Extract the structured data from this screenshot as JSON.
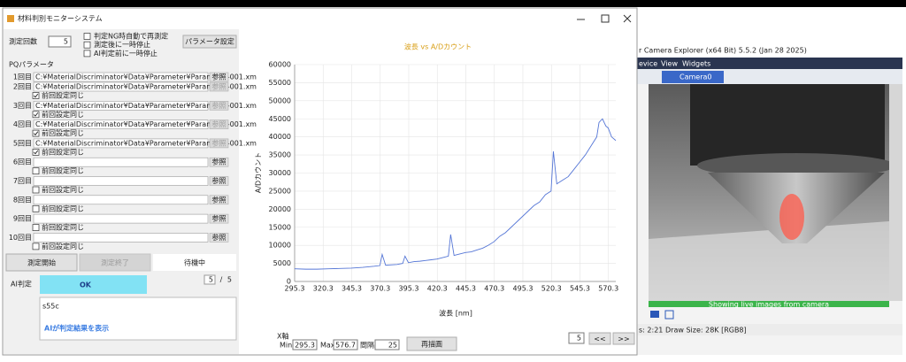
{
  "window": {
    "title": "材料判別モニターシステム"
  },
  "settings": {
    "count_label": "測定回数",
    "count": "5",
    "options": [
      "判定NG時自動で再測定",
      "測定後に一時停止",
      "AI判定前に一時停止"
    ],
    "param_button": "パラメータ設定",
    "pq_label": "PQパラメータ"
  },
  "rows": [
    {
      "label": "1回目",
      "path": "C:¥MaterialDiscriminator¥Data¥Parameter¥Parameter-001.xm",
      "button": "参照"
    },
    {
      "label": "2回目",
      "path": "C:¥MaterialDiscriminator¥Data¥Parameter¥Parameter-001.xm",
      "button": "参照",
      "checkbox": "前回設定同じ",
      "checked": true
    },
    {
      "label": "3回目",
      "path": "C:¥MaterialDiscriminator¥Data¥Parameter¥Parameter-001.xm",
      "button": "参照",
      "checkbox": "前回設定同じ",
      "checked": true
    },
    {
      "label": "4回目",
      "path": "C:¥MaterialDiscriminator¥Data¥Parameter¥Parameter-001.xm",
      "button": "参照",
      "checkbox": "前回設定同じ",
      "checked": true
    },
    {
      "label": "5回目",
      "path": "C:¥MaterialDiscriminator¥Data¥Parameter¥Parameter-001.xm",
      "button": "参照",
      "checkbox": "前回設定同じ",
      "checked": true
    },
    {
      "label": "6回目",
      "button": "参照",
      "checkbox": "前回設定同じ",
      "checked": false
    },
    {
      "label": "7回目",
      "button": "参照",
      "checkbox": "前回設定同じ",
      "checked": false
    },
    {
      "label": "8回目",
      "button": "参照",
      "checkbox": "前回設定同じ",
      "checked": false
    },
    {
      "label": "9回目",
      "button": "参照",
      "checkbox": "前回設定同じ",
      "checked": false
    },
    {
      "label": "10回目",
      "button": "参照",
      "checkbox": "前回設定同じ",
      "checked": false
    }
  ],
  "actions": {
    "start": "測定開始",
    "stop": "測定終了",
    "status": "待機中"
  },
  "judge": {
    "label": "AI判定",
    "result": "OK",
    "index": "5",
    "separator": "/",
    "total": "5"
  },
  "output": {
    "sample": "s55c",
    "annotation": "AIが判定結果を表示"
  },
  "chart_data": {
    "type": "line",
    "title": "波長 vs A/Dカウント",
    "x_label": "波長 [nm]",
    "y_label": "A/Dカウント",
    "color": "#5576d6",
    "grid": true,
    "xlim": [
      295.3,
      576.7
    ],
    "ylim": [
      0,
      60000
    ],
    "xticks": [
      295.3,
      320.3,
      345.3,
      370.3,
      395.3,
      420.3,
      445.3,
      470.3,
      495.3,
      520.3,
      545.3,
      570.3
    ],
    "yticks": [
      0,
      5000,
      10000,
      15000,
      20000,
      25000,
      30000,
      35000,
      40000,
      45000,
      50000,
      55000,
      60000
    ],
    "x": [
      295.3,
      305,
      315,
      325,
      335,
      345,
      355,
      365,
      370,
      372,
      375,
      385,
      390,
      392,
      395,
      400,
      405,
      410,
      415,
      420,
      425,
      430,
      432,
      435,
      440,
      445,
      450,
      455,
      460,
      465,
      470,
      475,
      480,
      485,
      490,
      495,
      500,
      505,
      510,
      515,
      520,
      522,
      525,
      530,
      535,
      540,
      545,
      550,
      555,
      560,
      562,
      565,
      568,
      570,
      573,
      576.7
    ],
    "values": [
      3500,
      3400,
      3400,
      3500,
      3600,
      3700,
      3900,
      4200,
      4400,
      7500,
      4500,
      4700,
      5000,
      7000,
      5200,
      5500,
      5600,
      5800,
      6000,
      6200,
      6600,
      7000,
      13000,
      7200,
      7600,
      8000,
      8200,
      8700,
      9200,
      10000,
      11000,
      12500,
      13500,
      15000,
      16500,
      18000,
      19500,
      21000,
      22000,
      24000,
      25000,
      36000,
      27000,
      28000,
      29000,
      31000,
      33000,
      35000,
      37500,
      40000,
      44000,
      45000,
      43000,
      42500,
      40000,
      39000
    ]
  },
  "axis_controls": {
    "axis_label": "X軸",
    "min_label": "Min",
    "min": "295.3",
    "max_label": "Max",
    "max": "576.7",
    "interval_label": "間隔",
    "interval": "25",
    "redraw": "再描画",
    "page": "5",
    "prev": "<<",
    "next": ">>"
  },
  "camera": {
    "title": "r Camera Explorer (x64 Bit) 5.5.2 (Jan 28 2025)",
    "menu": [
      "evice",
      "View",
      "Widgets"
    ],
    "tab": "Camera0",
    "live": "Showing live images from camera",
    "status": [
      "s: 2:21",
      "Draw Size: 28K [RGB8]"
    ]
  }
}
